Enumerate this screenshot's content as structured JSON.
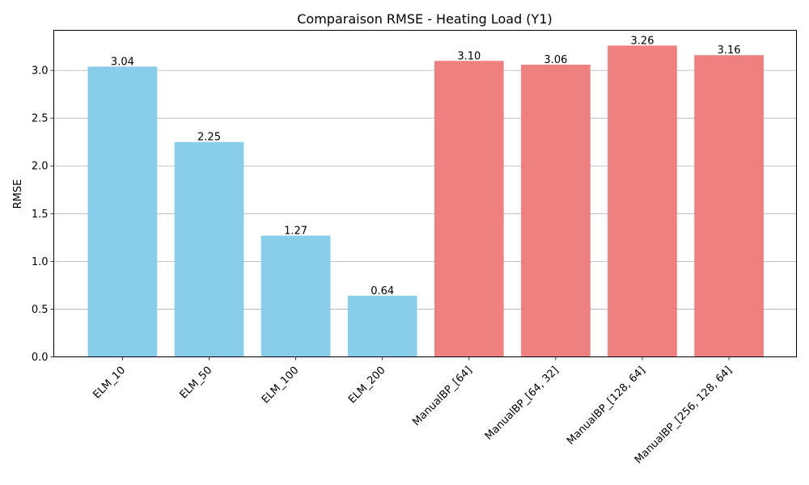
{
  "chart_data": {
    "type": "bar",
    "title": "Comparaison RMSE - Heating Load (Y1)",
    "xlabel": "",
    "ylabel": "RMSE",
    "ylim": [
      0,
      3.42
    ],
    "yticks": [
      "0.0",
      "0.5",
      "1.0",
      "1.5",
      "2.0",
      "2.5",
      "3.0"
    ],
    "ytick_values": [
      0,
      0.5,
      1.0,
      1.5,
      2.0,
      2.5,
      3.0
    ],
    "grid": "y",
    "categories": [
      "ELM_10",
      "ELM_50",
      "ELM_100",
      "ELM_200",
      "ManualBP_[64]",
      "ManualBP_[64, 32]",
      "ManualBP_[128, 64]",
      "ManualBP_[256, 128, 64]"
    ],
    "values": [
      3.04,
      2.25,
      1.27,
      0.64,
      3.1,
      3.06,
      3.26,
      3.16
    ],
    "value_labels": [
      "3.04",
      "2.25",
      "1.27",
      "0.64",
      "3.10",
      "3.06",
      "3.26",
      "3.16"
    ],
    "colors": [
      "#87CEEB",
      "#87CEEB",
      "#87CEEB",
      "#87CEEB",
      "#F08080",
      "#F08080",
      "#F08080",
      "#F08080"
    ]
  }
}
